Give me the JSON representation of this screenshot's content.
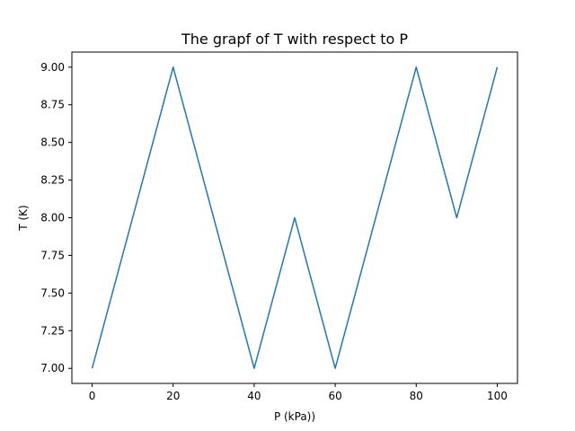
{
  "chart_data": {
    "type": "line",
    "title": "The grapf of T with respect to P",
    "xlabel": "P (kPa))",
    "ylabel": "T (K)",
    "xlim": [
      -5,
      105
    ],
    "ylim": [
      6.9,
      9.1
    ],
    "xticks": [
      0,
      20,
      40,
      60,
      80,
      100
    ],
    "xtick_labels": [
      "0",
      "20",
      "40",
      "60",
      "80",
      "100"
    ],
    "yticks": [
      7.0,
      7.25,
      7.5,
      7.75,
      8.0,
      8.25,
      8.5,
      8.75,
      9.0
    ],
    "ytick_labels": [
      "7.00",
      "7.25",
      "7.50",
      "7.75",
      "8.00",
      "8.25",
      "8.50",
      "8.75",
      "9.00"
    ],
    "grid": false,
    "series": [
      {
        "color": "#1f77b4",
        "x": [
          0,
          20,
          40,
          50,
          60,
          80,
          90,
          100
        ],
        "y": [
          7,
          9,
          7,
          8,
          7,
          9,
          8,
          9
        ]
      }
    ]
  }
}
